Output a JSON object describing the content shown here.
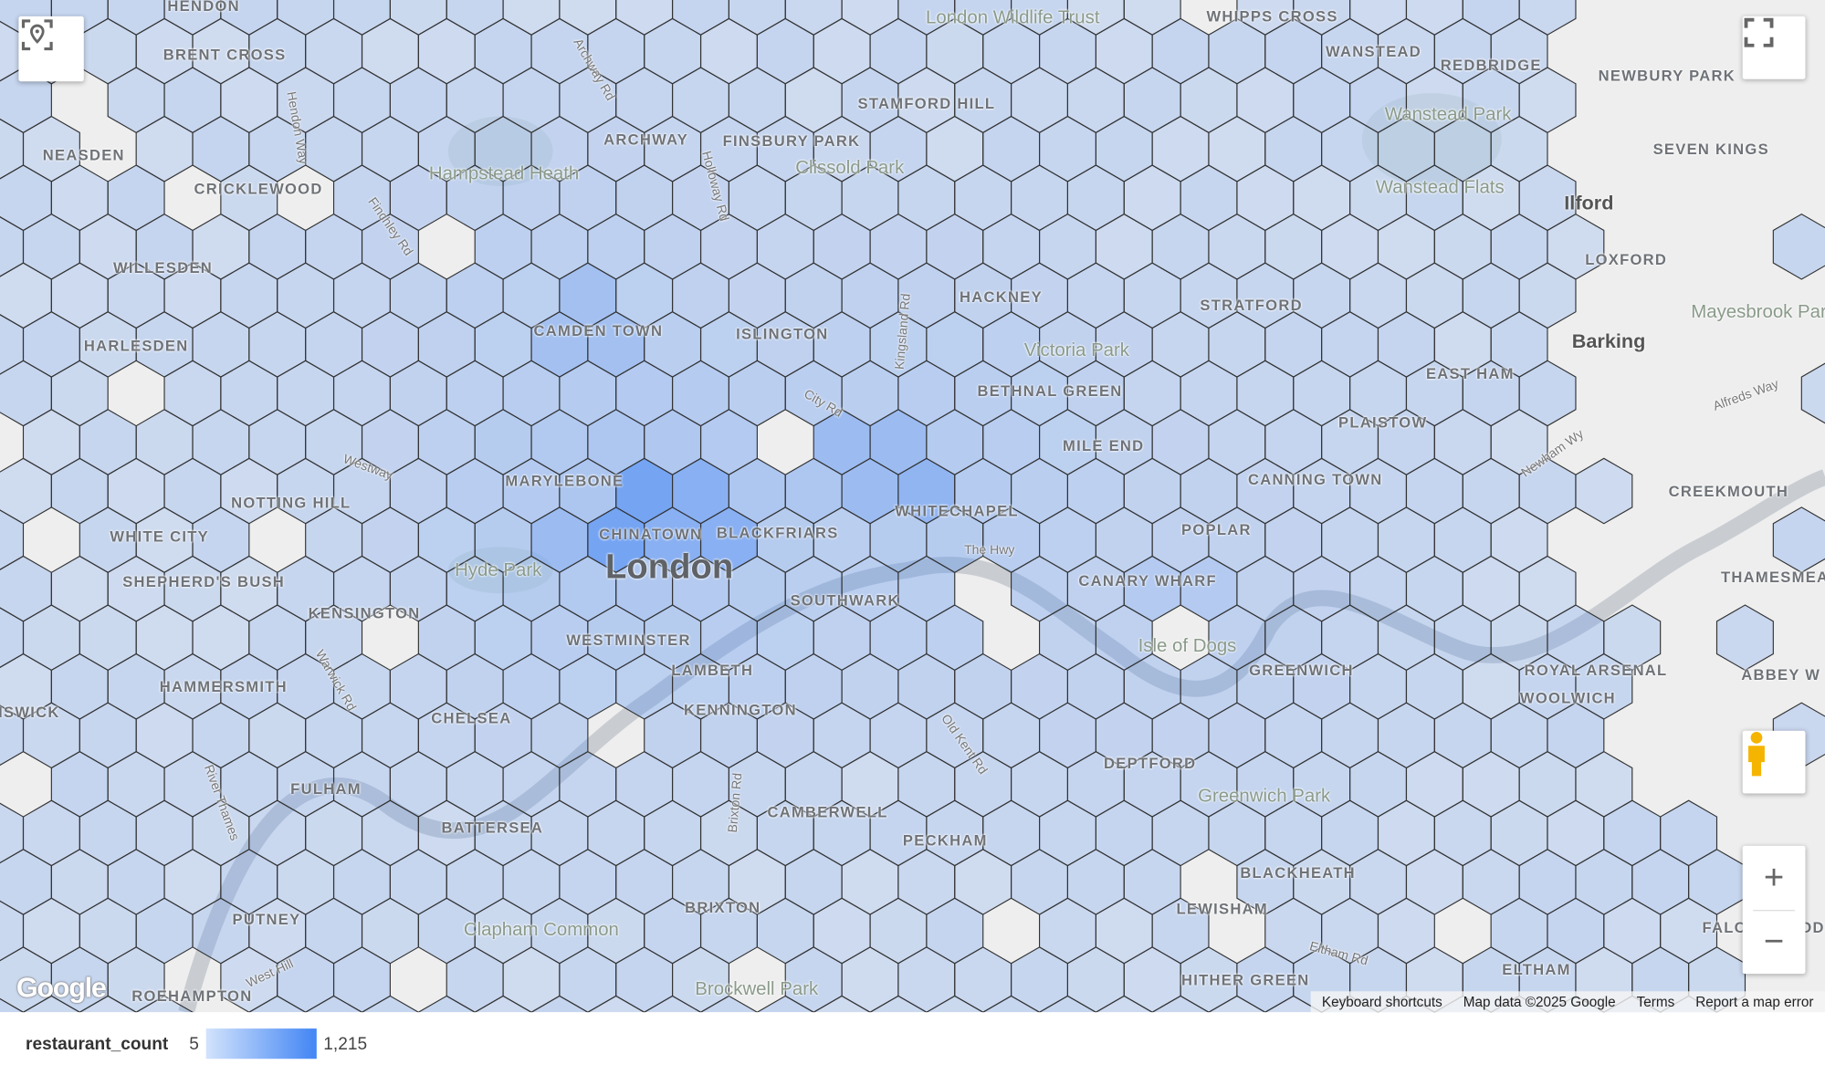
{
  "legend": {
    "field": "restaurant_count",
    "min": "5",
    "max": "1,215",
    "min_color": "#d2e3fc",
    "max_color": "#4285f4"
  },
  "attribution": {
    "keyboard": "Keyboard shortcuts",
    "map_data": "Map data ©2025 Google",
    "terms": "Terms",
    "report": "Report a map error"
  },
  "logo": "Google",
  "controls": {
    "locate": "location-icon",
    "fullscreen": "fullscreen-icon",
    "pegman": "street-view-icon",
    "zoom_in": "+",
    "zoom_out": "−"
  },
  "places": [
    "HENDON",
    "BRENT CROSS",
    "NEASDEN",
    "CRICKLEWOOD",
    "WILLESDEN",
    "HARLESDEN",
    "NOTTING HILL",
    "WHITE CITY",
    "SHEPHERD'S BUSH",
    "KENSINGTON",
    "HAMMERSMITH",
    "CHELSEA",
    "FULHAM",
    "BATTERSEA",
    "PUTNEY",
    "ROEHAMPTON",
    "ARCHWAY",
    "FINSBURY PARK",
    "STAMFORD HILL",
    "CAMDEN TOWN",
    "ISLINGTON",
    "HACKNEY",
    "BETHNAL GREEN",
    "MILE END",
    "MARYLEBONE",
    "CHINATOWN",
    "BLACKFRIARS",
    "WHITECHAPEL",
    "SOUTHWARK",
    "WESTMINSTER",
    "LAMBETH",
    "KENNINGTON",
    "CAMBERWELL",
    "PECKHAM",
    "BRIXTON",
    "WANSTEAD",
    "REDBRIDGE",
    "NEWBURY PARK",
    "SEVEN KINGS",
    "LOXFORD",
    "STRATFORD",
    "EAST HAM",
    "PLAISTOW",
    "CANNING TOWN",
    "POPLAR",
    "CANARY WHARF",
    "GREENWICH",
    "ROYAL ARSENAL",
    "WOOLWICH",
    "CREEKMOUTH",
    "THAMESMEAD",
    "ABBEY W",
    "DEPTFORD",
    "BLACKHEATH",
    "LEWISHAM",
    "HITHER GREEN",
    "FALCONWOOD",
    "WHIPPS CROSS",
    "ELTHAM",
    "ISWICK"
  ],
  "parks": [
    "Hampstead Heath",
    "Clissold Park",
    "London Wildlife Trust",
    "Victoria Park",
    "Hyde Park",
    "Clapham Common",
    "Brockwell Park",
    "Wanstead Park",
    "Wanstead Flats",
    "Mayesbrook Park",
    "Isle of Dogs",
    "Greenwich Park"
  ],
  "towns": [
    "Ilford",
    "Barking",
    "London"
  ],
  "roads": [
    "Archway Rd",
    "Hendon Way",
    "Finchley Rd",
    "Holloway Rd",
    "Kingsland Rd",
    "City Rd",
    "Westway",
    "The Hwy",
    "Old Kent Rd",
    "Warwick Rd",
    "Brixton Rd",
    "Alfreds Way",
    "Eltham Rd",
    "West Hill",
    "Newham Wy",
    "River Thames"
  ]
}
